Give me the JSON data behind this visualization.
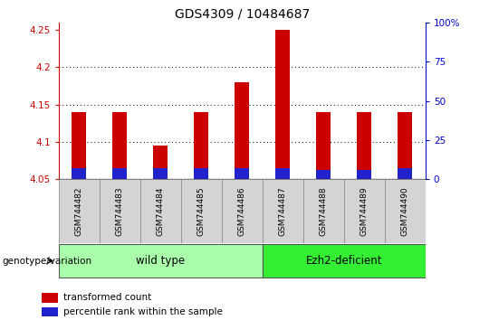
{
  "title": "GDS4309 / 10484687",
  "samples": [
    "GSM744482",
    "GSM744483",
    "GSM744484",
    "GSM744485",
    "GSM744486",
    "GSM744487",
    "GSM744488",
    "GSM744489",
    "GSM744490"
  ],
  "red_values": [
    4.14,
    4.14,
    4.095,
    4.14,
    4.18,
    4.25,
    4.14,
    4.14,
    4.14
  ],
  "blue_values": [
    4.065,
    4.065,
    4.065,
    4.065,
    4.065,
    4.065,
    4.063,
    4.063,
    4.065
  ],
  "baseline": 4.05,
  "ylim": [
    4.05,
    4.26
  ],
  "yticks": [
    4.05,
    4.1,
    4.15,
    4.2,
    4.25
  ],
  "grid_values": [
    4.1,
    4.15,
    4.2
  ],
  "right_yticks": [
    0,
    25,
    50,
    75,
    100
  ],
  "wt_count": 5,
  "ezh2_count": 4,
  "group_label": "genotype/variation",
  "wild_type_label": "wild type",
  "ezh2_label": "Ezh2-deficient",
  "legend_red": "transformed count",
  "legend_blue": "percentile rank within the sample",
  "red_color": "#cc0000",
  "blue_color": "#2222cc",
  "bar_width": 0.35,
  "wild_type_color": "#aaffaa",
  "ezh2_color": "#33ee33",
  "sample_box_color": "#d4d4d4",
  "background_color": "#ffffff",
  "tick_color_left": "#cc0000",
  "tick_color_right": "#0000cc",
  "title_fontsize": 10,
  "axis_fontsize": 7.5,
  "sample_fontsize": 6.5,
  "group_fontsize": 8.5,
  "legend_fontsize": 7.5
}
